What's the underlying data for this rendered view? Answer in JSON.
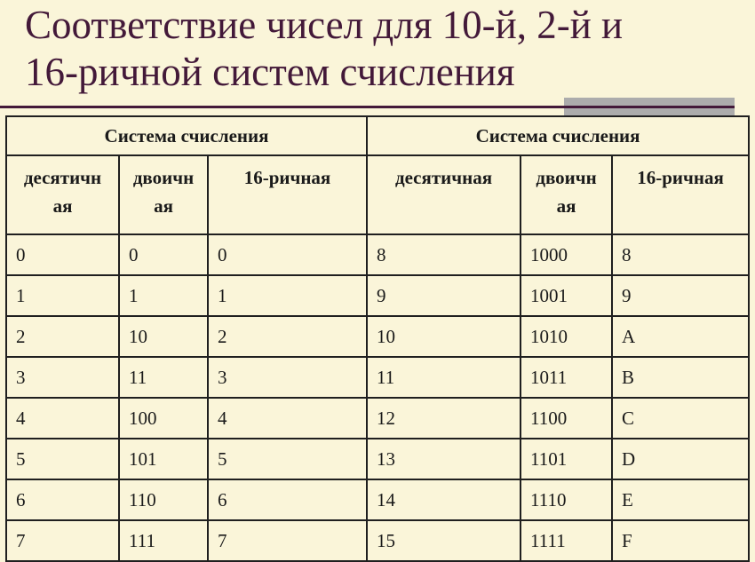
{
  "title": {
    "line1": "Соответствие чисел для 10-й, 2-й и",
    "line2": "16-ричной систем счисления"
  },
  "table": {
    "group_headers": [
      "Система счисления",
      "Система счисления"
    ],
    "column_headers": [
      "десятичн\nая",
      "двоичн\nая",
      "16-ричная",
      "десятичная",
      "двоичн\nая",
      "16-ричная"
    ],
    "rows": [
      [
        "0",
        "0",
        "0",
        "8",
        "1000",
        "8"
      ],
      [
        "1",
        "1",
        "1",
        "9",
        "1001",
        "9"
      ],
      [
        "2",
        "10",
        "2",
        "10",
        "1010",
        "A"
      ],
      [
        "3",
        "11",
        "3",
        "11",
        "1011",
        "B"
      ],
      [
        "4",
        "100",
        "4",
        "12",
        "1100",
        "C"
      ],
      [
        "5",
        "101",
        "5",
        "13",
        "1101",
        "D"
      ],
      [
        "6",
        "110",
        "6",
        "14",
        "1110",
        "E"
      ],
      [
        "7",
        "111",
        "7",
        "15",
        "1111",
        "F"
      ]
    ]
  },
  "colors": {
    "background": "#FAF5D9",
    "title_text": "#431939",
    "title_rule": "#431939",
    "accent_bar": "#ACACAC",
    "table_border": "#1f1f1f",
    "cell_text": "#1a1a1a"
  }
}
